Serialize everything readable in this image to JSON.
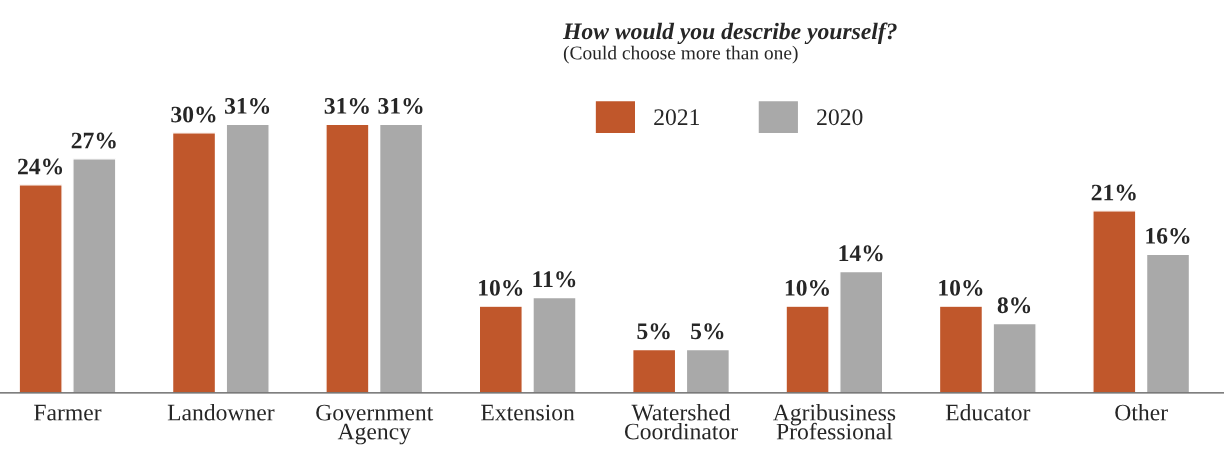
{
  "chart_data": {
    "type": "bar",
    "title": "How would you describe yourself?",
    "subtitle": "(Could choose more than one)",
    "categories": [
      "Farmer",
      "Landowner",
      "Government\nAgency",
      "Extension",
      "Watershed\nCoordinator",
      "Agribusiness\nProfessional",
      "Educator",
      "Other"
    ],
    "series": [
      {
        "name": "2021",
        "color": "#c0572b",
        "values": [
          24,
          30,
          31,
          10,
          5,
          10,
          10,
          21
        ],
        "value_labels": [
          "24%",
          "30%",
          "31%",
          "10%",
          "5%",
          "10%",
          "10%",
          "21%"
        ]
      },
      {
        "name": "2020",
        "color": "#a9a9a9",
        "values": [
          27,
          31,
          31,
          11,
          5,
          14,
          8,
          16
        ],
        "value_labels": [
          "27%",
          "31%",
          "31%",
          "11%",
          "5%",
          "14%",
          "8%",
          "16%"
        ]
      }
    ],
    "legend": "top",
    "grid": false
  }
}
